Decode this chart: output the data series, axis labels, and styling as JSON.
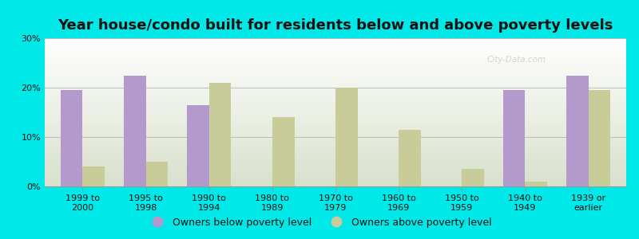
{
  "title": "Year house/condo built for residents below and above poverty levels",
  "categories": [
    "1999 to\n2000",
    "1995 to\n1998",
    "1990 to\n1994",
    "1980 to\n1989",
    "1970 to\n1979",
    "1960 to\n1969",
    "1950 to\n1959",
    "1940 to\n1949",
    "1939 or\nearlier"
  ],
  "below_poverty": [
    19.5,
    22.5,
    16.5,
    0.0,
    0.0,
    0.0,
    0.0,
    19.5,
    22.5
  ],
  "above_poverty": [
    4.0,
    5.0,
    21.0,
    14.0,
    20.0,
    11.5,
    3.5,
    1.0,
    19.5
  ],
  "below_color": "#b399cc",
  "above_color": "#c8cc99",
  "background_color": "#00e8e8",
  "ylim": [
    0,
    30
  ],
  "ytick_vals": [
    0,
    10,
    20,
    30
  ],
  "ylabel_ticks": [
    "0%",
    "10%",
    "20%",
    "30%"
  ],
  "legend_below": "Owners below poverty level",
  "legend_above": "Owners above poverty level",
  "bar_width": 0.35,
  "title_fontsize": 13,
  "tick_fontsize": 8,
  "legend_fontsize": 9,
  "watermark": "City-Data.com"
}
